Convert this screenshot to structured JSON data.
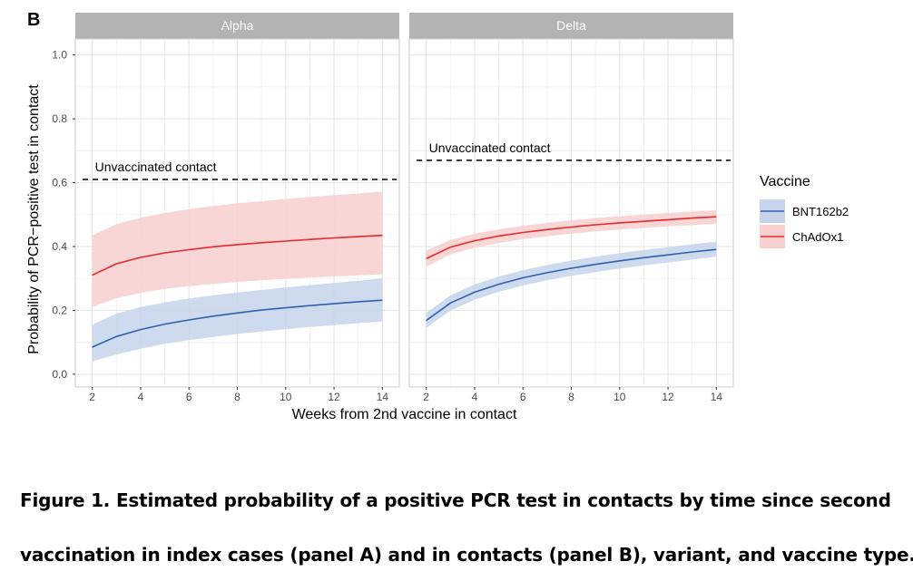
{
  "panel_label": "B",
  "caption": {
    "line1": "Figure 1. Estimated probability of a positive PCR test in contacts by time since second",
    "line2": "vaccination in index cases (panel A) and in contacts (panel B), variant, and vaccine type."
  },
  "colors": {
    "BNT162b2": "#2e62b0",
    "ChAdOx1": "#e8282a",
    "BNT162b2_band": "#c6d3ea",
    "ChAdOx1_band": "#f8cfcf",
    "strip": "#b3b3b3",
    "grid": "#e6e6e6"
  },
  "chart_data": {
    "type": "line",
    "ylabel": "Probability of PCR−positive test in contact",
    "xlabel": "Weeks from 2nd vaccine in contact",
    "xlim": [
      1.3,
      14.7
    ],
    "ylim": [
      -0.04,
      1.05
    ],
    "x_ticks": [
      2,
      4,
      6,
      8,
      10,
      12,
      14
    ],
    "y_ticks": [
      0.0,
      0.2,
      0.4,
      0.6,
      0.8,
      1.0
    ],
    "y_tick_labels": [
      "0.0",
      "0.2",
      "0.4",
      "0.6",
      "0.8",
      "1.0"
    ],
    "grid": true,
    "legend": {
      "title": "Vaccine",
      "position": "right",
      "entries": [
        "BNT162b2",
        "ChAdOx1"
      ]
    },
    "panels": [
      {
        "name": "Alpha",
        "reference_line": {
          "label": "Unvaccinated contact",
          "y": 0.61
        },
        "series": [
          {
            "name": "BNT162b2",
            "x": [
              2,
              3,
              4,
              5,
              6,
              7,
              8,
              9,
              10,
              11,
              12,
              13,
              14
            ],
            "y": [
              0.085,
              0.118,
              0.14,
              0.157,
              0.17,
              0.182,
              0.192,
              0.201,
              0.208,
              0.215,
              0.221,
              0.227,
              0.232
            ],
            "lower": [
              0.04,
              0.062,
              0.08,
              0.095,
              0.107,
              0.117,
              0.126,
              0.134,
              0.141,
              0.148,
              0.154,
              0.16,
              0.165
            ],
            "upper": [
              0.155,
              0.19,
              0.21,
              0.225,
              0.237,
              0.247,
              0.256,
              0.264,
              0.272,
              0.279,
              0.286,
              0.293,
              0.3
            ]
          },
          {
            "name": "ChAdOx1",
            "x": [
              2,
              3,
              4,
              5,
              6,
              7,
              8,
              9,
              10,
              11,
              12,
              13,
              14
            ],
            "y": [
              0.31,
              0.346,
              0.366,
              0.38,
              0.39,
              0.399,
              0.406,
              0.412,
              0.417,
              0.422,
              0.427,
              0.431,
              0.435
            ],
            "lower": [
              0.21,
              0.238,
              0.255,
              0.267,
              0.276,
              0.283,
              0.289,
              0.294,
              0.299,
              0.303,
              0.306,
              0.31,
              0.313
            ],
            "upper": [
              0.435,
              0.47,
              0.49,
              0.505,
              0.517,
              0.527,
              0.535,
              0.542,
              0.549,
              0.555,
              0.561,
              0.566,
              0.572
            ]
          }
        ]
      },
      {
        "name": "Delta",
        "reference_line": {
          "label": "Unvaccinated contact",
          "y": 0.67
        },
        "series": [
          {
            "name": "BNT162b2",
            "x": [
              2,
              3,
              4,
              5,
              6,
              7,
              8,
              9,
              10,
              11,
              12,
              13,
              14
            ],
            "y": [
              0.168,
              0.223,
              0.257,
              0.282,
              0.302,
              0.318,
              0.332,
              0.344,
              0.355,
              0.365,
              0.374,
              0.383,
              0.391
            ],
            "lower": [
              0.145,
              0.199,
              0.233,
              0.258,
              0.278,
              0.294,
              0.308,
              0.32,
              0.331,
              0.341,
              0.35,
              0.359,
              0.368
            ],
            "upper": [
              0.192,
              0.247,
              0.281,
              0.306,
              0.326,
              0.342,
              0.356,
              0.368,
              0.379,
              0.389,
              0.398,
              0.407,
              0.415
            ]
          },
          {
            "name": "ChAdOx1",
            "x": [
              2,
              3,
              4,
              5,
              6,
              7,
              8,
              9,
              10,
              11,
              12,
              13,
              14
            ],
            "y": [
              0.362,
              0.398,
              0.418,
              0.433,
              0.444,
              0.453,
              0.461,
              0.468,
              0.474,
              0.479,
              0.484,
              0.489,
              0.493
            ],
            "lower": [
              0.337,
              0.375,
              0.396,
              0.411,
              0.423,
              0.432,
              0.44,
              0.447,
              0.453,
              0.458,
              0.463,
              0.467,
              0.471
            ],
            "upper": [
              0.387,
              0.421,
              0.44,
              0.454,
              0.465,
              0.474,
              0.482,
              0.489,
              0.495,
              0.5,
              0.505,
              0.51,
              0.514
            ]
          }
        ]
      }
    ]
  }
}
